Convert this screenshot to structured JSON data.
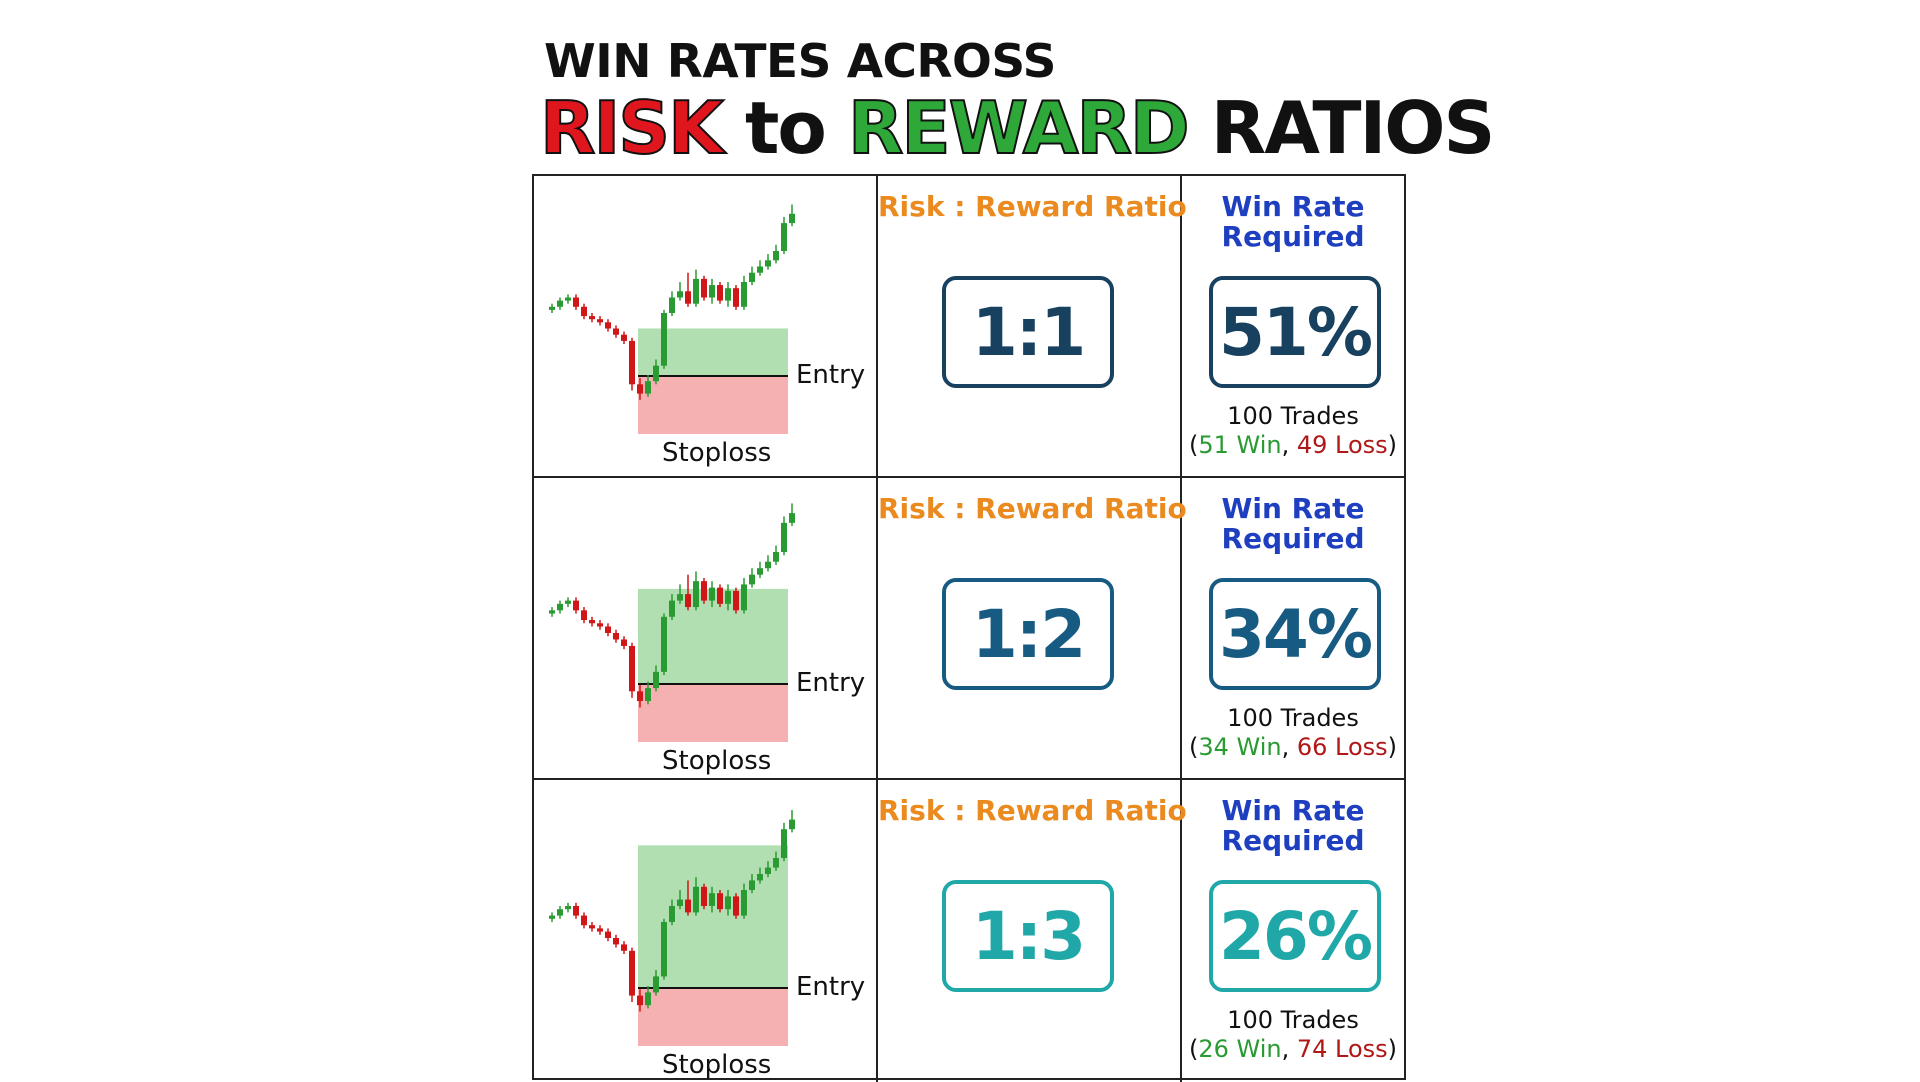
{
  "title": {
    "line1": "WIN RATES ACROSS",
    "risk": "RISK",
    "to": "to",
    "reward": "REWARD",
    "ratios": "RATIOS"
  },
  "colors": {
    "risk_red": "#e0161e",
    "reward_green": "#2fa83a",
    "ratio_label_orange": "#ea8a1f",
    "winrate_label_blue": "#1e3fbf",
    "profit_zone": "#a8dca8",
    "loss_zone": "#f4a8a8"
  },
  "rows": [
    {
      "entry_label": "Entry",
      "stoploss_label": "Stoploss",
      "rr_label": "Risk : Reward Ratio",
      "ratio": "1:1",
      "ratio_color": "#18405f",
      "winrate_label_1": "Win Rate",
      "winrate_label_2": "Required",
      "winrate": "51%",
      "winrate_color": "#18405f",
      "trades": "100 Trades",
      "open_paren": "(",
      "wins": "51 Win",
      "comma": ", ",
      "losses": "49 Loss",
      "close_paren": ")",
      "reward_multiple": 1
    },
    {
      "entry_label": "Entry",
      "stoploss_label": "Stoploss",
      "rr_label": "Risk : Reward Ratio",
      "ratio": "1:2",
      "ratio_color": "#185b82",
      "winrate_label_1": "Win Rate",
      "winrate_label_2": "Required",
      "winrate": "34%",
      "winrate_color": "#185b82",
      "trades": "100 Trades",
      "open_paren": "(",
      "wins": "34 Win",
      "comma": ", ",
      "losses": "66 Loss",
      "close_paren": ")",
      "reward_multiple": 2
    },
    {
      "entry_label": "Entry",
      "stoploss_label": "Stoploss",
      "rr_label": "Risk : Reward Ratio",
      "ratio": "1:3",
      "ratio_color": "#20a8a8",
      "winrate_label_1": "Win Rate",
      "winrate_label_2": "Required",
      "winrate": "26%",
      "winrate_color": "#20a8a8",
      "trades": "100 Trades",
      "open_paren": "(",
      "wins": "26 Win",
      "comma": ", ",
      "losses": "74 Loss",
      "close_paren": ")",
      "reward_multiple": 3
    }
  ]
}
